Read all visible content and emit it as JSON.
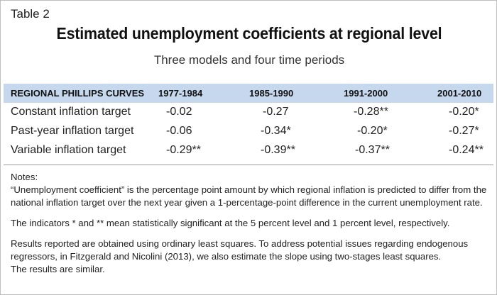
{
  "table_label": "Table 2",
  "title": "Estimated unemployment coefficients at regional level",
  "subtitle": "Three models and four time periods",
  "header": {
    "row_label": "REGIONAL PHILLIPS CURVES",
    "periods": [
      "1977-1984",
      "1985-1990",
      "1991-2000",
      "2001-2010"
    ]
  },
  "rows": [
    {
      "label": "Constant inflation target",
      "values": [
        "-0.02",
        "-0.27",
        "-0.28**",
        "-0.20*"
      ]
    },
    {
      "label": "Past-year inflation target",
      "values": [
        "-0.06",
        "-0.34*",
        "-0.20*",
        "-0.27*"
      ]
    },
    {
      "label": "Variable inflation target",
      "values": [
        "-0.29**",
        "-0.39**",
        "-0.37**",
        "-0.24**"
      ]
    }
  ],
  "notes": {
    "heading": "Notes:",
    "definition_line1": "“Unemployment coefficient” is the percentage point amount by which regional inflation is predicted to differ from the",
    "definition_line2": "national inflation target over the next year given a 1-percentage-point difference in the current unemployment rate.",
    "significance": "The indicators * and ** mean statistically significant at the 5 percent level and 1 percent level, respectively.",
    "method_line1": "Results reported are obtained using ordinary least squares. To address potential issues regarding endogenous",
    "method_line2": "regressors, in Fitzgerald and Nicolini (2013), we also estimate the slope using two-stages least squares.",
    "method_line3": "The results are similar."
  },
  "colors": {
    "header_bg": "#c6d8ee",
    "border": "#bfbfbf"
  }
}
